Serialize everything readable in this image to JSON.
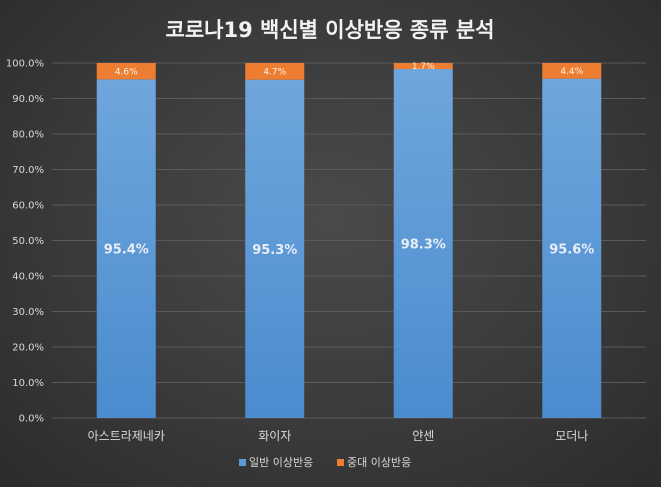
{
  "chart_data": {
    "type": "bar",
    "stacked": true,
    "title": "코로나19 백신별 이상반응 종류 분석",
    "categories": [
      "아스트라제네카",
      "화이자",
      "얀센",
      "모더나"
    ],
    "series": [
      {
        "name": "일반 이상반응",
        "values": [
          95.4,
          95.3,
          98.3,
          95.6
        ],
        "labels": [
          "95.4%",
          "95.3%",
          "98.3%",
          "95.6%"
        ],
        "color": "#5b9bd5"
      },
      {
        "name": "중대 이상반응",
        "values": [
          4.6,
          4.7,
          1.7,
          4.4
        ],
        "labels": [
          "4.6%",
          "4.7%",
          "1.7%",
          "4.4%"
        ],
        "color": "#ed7d31"
      }
    ],
    "y_ticks": [
      "0.0%",
      "10.0%",
      "20.0%",
      "30.0%",
      "40.0%",
      "50.0%",
      "60.0%",
      "70.0%",
      "80.0%",
      "90.0%",
      "100.0%"
    ],
    "ylim": [
      0,
      100
    ],
    "grid": true,
    "legend_position": "bottom"
  },
  "colors": {
    "gridline": "#5a5a5a",
    "axis_text": "#d9d9d9"
  }
}
